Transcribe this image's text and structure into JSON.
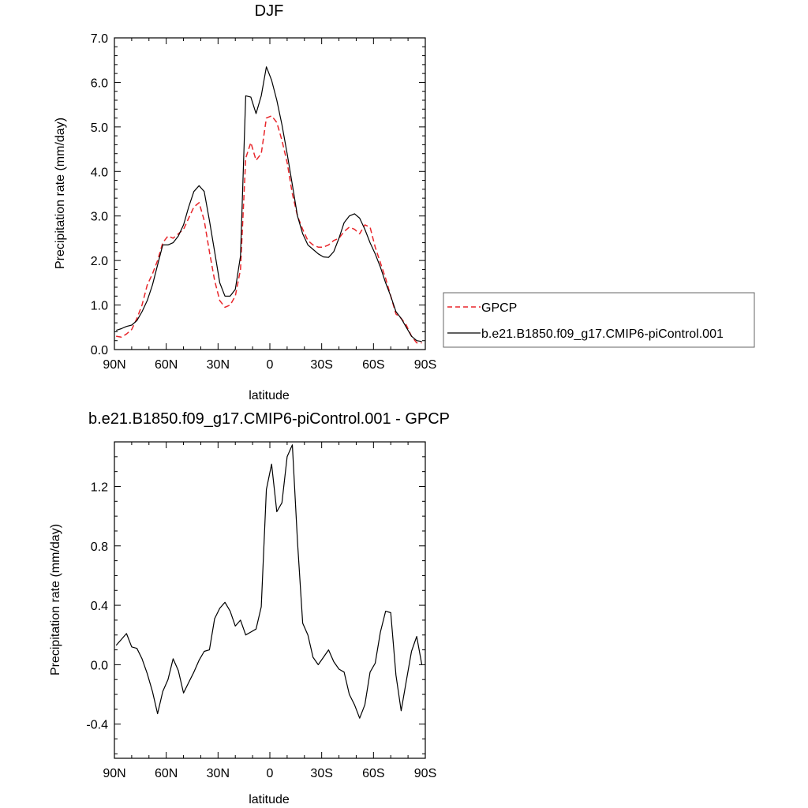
{
  "chart_data": [
    {
      "type": "line",
      "title": "DJF",
      "xlabel": "latitude",
      "ylabel": "Precipitation rate (mm/day)",
      "xlim": [
        90,
        -90
      ],
      "ylim": [
        0.0,
        7.0
      ],
      "x_ticks": [
        {
          "value": 90,
          "label": "90N"
        },
        {
          "value": 60,
          "label": "60N"
        },
        {
          "value": 30,
          "label": "30N"
        },
        {
          "value": 0,
          "label": "0"
        },
        {
          "value": -30,
          "label": "30S"
        },
        {
          "value": -60,
          "label": "60S"
        },
        {
          "value": -90,
          "label": "90S"
        }
      ],
      "y_ticks": [
        {
          "value": 0.0,
          "label": "0.0"
        },
        {
          "value": 1.0,
          "label": "1.0"
        },
        {
          "value": 2.0,
          "label": "2.0"
        },
        {
          "value": 3.0,
          "label": "3.0"
        },
        {
          "value": 4.0,
          "label": "4.0"
        },
        {
          "value": 5.0,
          "label": "5.0"
        },
        {
          "value": 6.0,
          "label": "6.0"
        },
        {
          "value": 7.0,
          "label": "7.0"
        }
      ],
      "legend": "right",
      "series": [
        {
          "name": "GPCP",
          "color": "#e8262b",
          "dash": true,
          "x": [
            89,
            86,
            83,
            80,
            77,
            74,
            71,
            68,
            65,
            62,
            59,
            56,
            53,
            50,
            47,
            44,
            41,
            38,
            35,
            32,
            29,
            26,
            23,
            20,
            17,
            14,
            11,
            8,
            5,
            2,
            -1,
            -4,
            -7,
            -10,
            -13,
            -16,
            -19,
            -22,
            -25,
            -28,
            -31,
            -34,
            -37,
            -40,
            -43,
            -46,
            -49,
            -52,
            -55,
            -58,
            -61,
            -64,
            -67,
            -70,
            -73,
            -76,
            -79,
            -82,
            -85,
            -88
          ],
          "y": [
            0.3,
            0.28,
            0.35,
            0.45,
            0.7,
            1.0,
            1.45,
            1.7,
            2.0,
            2.4,
            2.55,
            2.5,
            2.6,
            2.7,
            2.95,
            3.2,
            3.3,
            2.9,
            2.2,
            1.55,
            1.1,
            0.95,
            1.0,
            1.2,
            1.8,
            4.3,
            4.65,
            4.25,
            4.4,
            5.2,
            5.25,
            5.1,
            4.7,
            4.2,
            3.5,
            3.0,
            2.7,
            2.45,
            2.35,
            2.3,
            2.3,
            2.35,
            2.45,
            2.5,
            2.65,
            2.75,
            2.7,
            2.6,
            2.8,
            2.75,
            2.3,
            1.95,
            1.6,
            1.2,
            0.8,
            0.7,
            0.55,
            0.3,
            0.15,
            0.15
          ]
        },
        {
          "name": "b.e21.B1850.f09_g17.CMIP6-piControl.001",
          "color": "#000000",
          "dash": false,
          "x": [
            89,
            86,
            83,
            80,
            77,
            74,
            71,
            68,
            65,
            62,
            59,
            56,
            53,
            50,
            47,
            44,
            41,
            38,
            35,
            32,
            29,
            26,
            23,
            20,
            17,
            14,
            11,
            8,
            5,
            2,
            -1,
            -4,
            -7,
            -10,
            -13,
            -16,
            -19,
            -22,
            -25,
            -28,
            -31,
            -34,
            -37,
            -40,
            -43,
            -46,
            -49,
            -52,
            -55,
            -58,
            -61,
            -64,
            -67,
            -70,
            -73,
            -76,
            -79,
            -82,
            -85,
            -88
          ],
          "y": [
            0.43,
            0.47,
            0.52,
            0.55,
            0.65,
            0.85,
            1.1,
            1.45,
            1.9,
            2.35,
            2.35,
            2.4,
            2.55,
            2.8,
            3.2,
            3.55,
            3.68,
            3.55,
            2.9,
            2.2,
            1.5,
            1.2,
            1.2,
            1.35,
            2.1,
            5.7,
            5.67,
            5.3,
            5.7,
            6.35,
            6.05,
            5.6,
            5.05,
            4.4,
            3.7,
            3.0,
            2.6,
            2.35,
            2.25,
            2.15,
            2.08,
            2.07,
            2.2,
            2.5,
            2.85,
            3.0,
            3.05,
            2.95,
            2.7,
            2.4,
            2.15,
            1.85,
            1.5,
            1.2,
            0.85,
            0.7,
            0.5,
            0.3,
            0.2,
            0.18
          ]
        }
      ]
    },
    {
      "type": "line",
      "title": "b.e21.B1850.f09_g17.CMIP6-piControl.001 - GPCP",
      "xlabel": "latitude",
      "ylabel": "Precipitation rate (mm/day)",
      "xlim": [
        90,
        -90
      ],
      "ylim": [
        -0.63,
        1.5
      ],
      "x_ticks": [
        {
          "value": 90,
          "label": "90N"
        },
        {
          "value": 60,
          "label": "60N"
        },
        {
          "value": 30,
          "label": "30N"
        },
        {
          "value": 0,
          "label": "0"
        },
        {
          "value": -30,
          "label": "30S"
        },
        {
          "value": -60,
          "label": "60S"
        },
        {
          "value": -90,
          "label": "90S"
        }
      ],
      "y_ticks": [
        {
          "value": -0.4,
          "label": "-0.4"
        },
        {
          "value": 0.0,
          "label": "0.0"
        },
        {
          "value": 0.4,
          "label": "0.4"
        },
        {
          "value": 0.8,
          "label": "0.8"
        },
        {
          "value": 1.2,
          "label": "1.2"
        }
      ],
      "series": [
        {
          "color": "#000000",
          "dash": false,
          "x": [
            89,
            86,
            83,
            80,
            77,
            74,
            71,
            68,
            65,
            62,
            59,
            56,
            53,
            50,
            47,
            44,
            41,
            38,
            35,
            32,
            29,
            26,
            23,
            20,
            17,
            14,
            11,
            8,
            5,
            2,
            -1,
            -4,
            -7,
            -10,
            -13,
            -16,
            -19,
            -22,
            -25,
            -28,
            -31,
            -34,
            -37,
            -40,
            -43,
            -46,
            -49,
            -52,
            -55,
            -58,
            -61,
            -64,
            -67,
            -70,
            -73,
            -76,
            -79,
            -82,
            -85,
            -88
          ],
          "y": [
            0.13,
            0.17,
            0.21,
            0.12,
            0.11,
            0.04,
            -0.06,
            -0.18,
            -0.33,
            -0.18,
            -0.1,
            0.04,
            -0.04,
            -0.19,
            -0.12,
            -0.05,
            0.03,
            0.09,
            0.1,
            0.31,
            0.38,
            0.42,
            0.36,
            0.26,
            0.3,
            0.2,
            0.22,
            0.24,
            0.39,
            1.18,
            1.35,
            1.03,
            1.09,
            1.4,
            1.48,
            0.83,
            0.28,
            0.2,
            0.05,
            0.0,
            0.05,
            0.1,
            0.02,
            -0.03,
            -0.05,
            -0.2,
            -0.27,
            -0.36,
            -0.27,
            -0.05,
            0.01,
            0.22,
            0.36,
            0.35,
            -0.07,
            -0.31,
            -0.11,
            0.09,
            0.19,
            0.0
          ]
        }
      ]
    }
  ]
}
